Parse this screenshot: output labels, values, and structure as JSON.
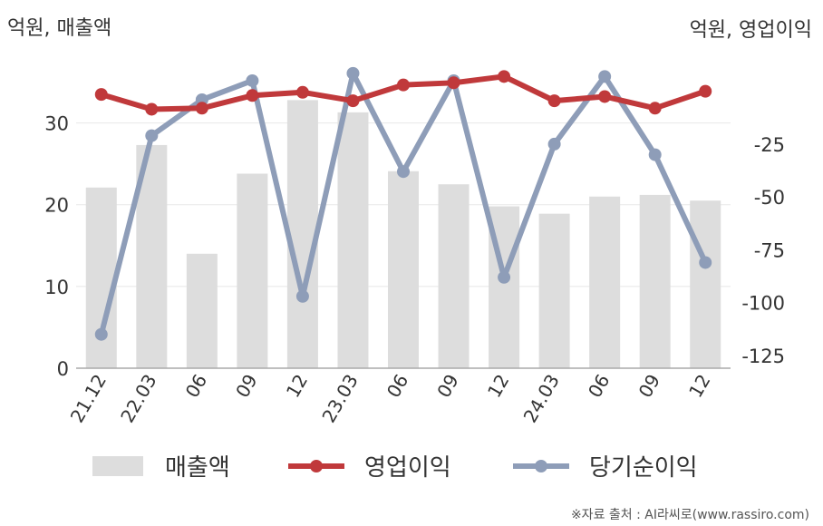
{
  "chart_data": {
    "type": "bar",
    "categories": [
      "21.12",
      "22.03",
      "06",
      "09",
      "12",
      "23.03",
      "06",
      "09",
      "12",
      "24.03",
      "06",
      "09",
      "12"
    ],
    "left_axis_label": "억원, 매출액",
    "right_axis_label": "억원, 영업이익",
    "left_ylim": [
      0,
      37.5
    ],
    "left_ticks": [
      0,
      10,
      20,
      30
    ],
    "right_ylim": [
      -131,
      14
    ],
    "right_ticks": [
      -125,
      -100,
      -75,
      -50,
      -25
    ],
    "series": [
      {
        "name": "매출액",
        "type": "bar",
        "axis": "left",
        "color": "#dddddd",
        "values": [
          22.1,
          27.3,
          14.0,
          23.8,
          32.8,
          31.3,
          24.1,
          22.5,
          19.8,
          18.9,
          21.0,
          21.2,
          20.5
        ]
      },
      {
        "name": "영업이익",
        "type": "line",
        "axis": "right",
        "color": "#c0393b",
        "values": [
          -1.5,
          -8.5,
          -8.0,
          -2.0,
          -0.5,
          -4.5,
          3.0,
          4.0,
          7.0,
          -4.5,
          -2.5,
          -8.0,
          0.0
        ]
      },
      {
        "name": "당기순이익",
        "type": "line",
        "axis": "right",
        "color": "#8e9db8",
        "values": [
          -115,
          -21,
          -4,
          5,
          -97,
          8.5,
          -38,
          5,
          -88,
          -25,
          7,
          -30,
          -81
        ]
      }
    ],
    "legend_position": "bottom",
    "grid": true
  },
  "source_note": "※자료 출처 : AI라씨로(www.rassiro.com)"
}
